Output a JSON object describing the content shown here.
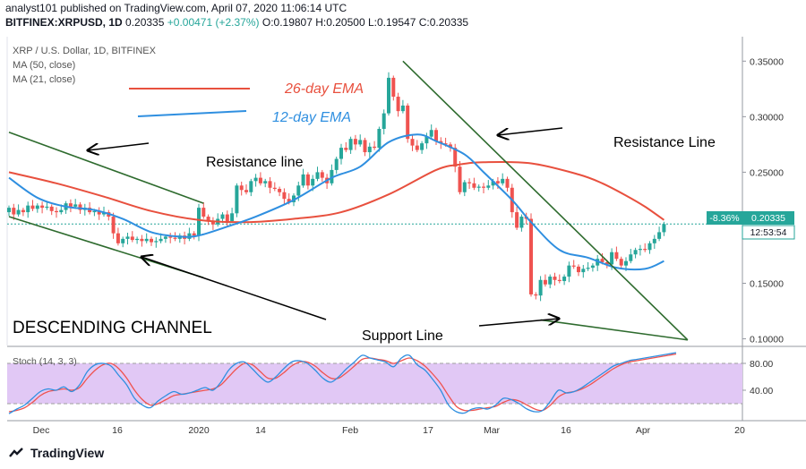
{
  "header": {
    "publish_line": "analyst101 published on TradingView.com, April 07, 2020 11:06:14 UTC",
    "symbol": "BITFINEX:XRPUSD, 1D",
    "price": "0.20335",
    "change": "+0.00471 (+2.37%)",
    "open": "O:0.19807",
    "high": "H:0.20500",
    "low": "L:0.19547",
    "close": "C:0.20335"
  },
  "legend": {
    "title": "XRP / U.S. Dollar, 1D, BITFINEX",
    "ma50": "MA (50, close)",
    "ma21": "MA (21, close)"
  },
  "annotations": {
    "ema26": "26-day EMA",
    "ema12": "12-day EMA",
    "resistance_left": "Resistance line",
    "resistance_right": "Resistance Line",
    "support": "Support Line",
    "channel": "DESCENDING CHANNEL"
  },
  "price_tag": {
    "change_pct": "-8.36%",
    "price": "0.20335",
    "countdown": "12:53:54"
  },
  "stoch": {
    "label": "Stoch (14, 3, 3)",
    "levels": [
      "80.00",
      "40.00"
    ]
  },
  "footer": {
    "brand": "TradingView"
  },
  "colors": {
    "up": "#26a69a",
    "down": "#ef5350",
    "ema26": "#e8503e",
    "ema12": "#2f8fe0",
    "trend": "#2e6b2e",
    "stoch_k": "#2f8fe0",
    "stoch_d": "#ef5350",
    "stoch_band": "#e1c8f5"
  },
  "chart_data": [
    {
      "type": "candlestick",
      "title": "XRP / U.S. Dollar, 1D, BITFINEX",
      "x_ticks": [
        "Dec",
        "16",
        "2020",
        "14",
        "Feb",
        "17",
        "Mar",
        "16",
        "Apr",
        "20"
      ],
      "y_ticks": [
        "0.35000",
        "0.30000",
        "0.25000",
        "0.20000",
        "0.15000",
        "0.10000"
      ],
      "ylim": [
        0.094,
        0.372
      ],
      "y_scale": "linear",
      "last_price": 0.20335,
      "closes": [
        0.218,
        0.212,
        0.216,
        0.214,
        0.22,
        0.217,
        0.22,
        0.218,
        0.219,
        0.215,
        0.214,
        0.216,
        0.222,
        0.219,
        0.221,
        0.216,
        0.218,
        0.214,
        0.215,
        0.212,
        0.214,
        0.21,
        0.195,
        0.186,
        0.19,
        0.192,
        0.189,
        0.19,
        0.188,
        0.19,
        0.187,
        0.188,
        0.19,
        0.192,
        0.191,
        0.19,
        0.193,
        0.19,
        0.195,
        0.193,
        0.218,
        0.21,
        0.206,
        0.203,
        0.208,
        0.212,
        0.206,
        0.213,
        0.238,
        0.234,
        0.232,
        0.242,
        0.245,
        0.24,
        0.242,
        0.236,
        0.235,
        0.232,
        0.226,
        0.223,
        0.229,
        0.238,
        0.248,
        0.238,
        0.244,
        0.25,
        0.245,
        0.24,
        0.252,
        0.262,
        0.272,
        0.27,
        0.28,
        0.275,
        0.279,
        0.268,
        0.273,
        0.272,
        0.289,
        0.303,
        0.335,
        0.318,
        0.305,
        0.31,
        0.28,
        0.274,
        0.27,
        0.276,
        0.282,
        0.288,
        0.278,
        0.276,
        0.275,
        0.272,
        0.255,
        0.232,
        0.241,
        0.24,
        0.236,
        0.237,
        0.236,
        0.238,
        0.242,
        0.24,
        0.244,
        0.236,
        0.214,
        0.2,
        0.21,
        0.208,
        0.14,
        0.139,
        0.153,
        0.149,
        0.156,
        0.153,
        0.152,
        0.156,
        0.166,
        0.165,
        0.16,
        0.163,
        0.164,
        0.166,
        0.172,
        0.169,
        0.167,
        0.178,
        0.172,
        0.166,
        0.17,
        0.176,
        0.18,
        0.181,
        0.18,
        0.186,
        0.19,
        0.196,
        0.20335
      ],
      "series": [
        {
          "name": "MA (50, close)",
          "color": "#e8503e",
          "x": [
            0,
            10,
            20,
            30,
            40,
            50,
            60,
            70,
            80,
            90,
            95,
            100,
            110,
            120,
            125,
            130,
            134,
            138
          ],
          "values": [
            0.25,
            0.24,
            0.228,
            0.215,
            0.207,
            0.205,
            0.208,
            0.214,
            0.23,
            0.252,
            0.257,
            0.259,
            0.258,
            0.248,
            0.24,
            0.229,
            0.219,
            0.207
          ]
        },
        {
          "name": "MA (21, close)",
          "color": "#2f8fe0",
          "x": [
            0,
            6,
            12,
            18,
            24,
            30,
            36,
            40,
            46,
            52,
            60,
            68,
            74,
            80,
            86,
            90,
            96,
            100,
            106,
            110,
            116,
            122,
            128,
            134,
            138
          ],
          "values": [
            0.245,
            0.227,
            0.219,
            0.216,
            0.208,
            0.196,
            0.192,
            0.193,
            0.201,
            0.21,
            0.225,
            0.245,
            0.255,
            0.277,
            0.284,
            0.278,
            0.266,
            0.25,
            0.225,
            0.205,
            0.18,
            0.173,
            0.164,
            0.163,
            0.17
          ]
        }
      ],
      "trend_lines": [
        {
          "name": "channel-upper",
          "x": [
            0,
            41
          ],
          "y": [
            0.286,
            0.222
          ]
        },
        {
          "name": "channel-lower",
          "x": [
            0,
            41
          ],
          "y": [
            0.21,
            0.155
          ]
        },
        {
          "name": "resistance",
          "x": [
            83,
            143
          ],
          "y": [
            0.35,
            0.099
          ]
        },
        {
          "name": "support",
          "x": [
            112,
            143
          ],
          "y": [
            0.117,
            0.099
          ]
        }
      ]
    },
    {
      "type": "line",
      "title": "Stoch (14, 3, 3)",
      "ylim": [
        0,
        100
      ],
      "y_ticks": [
        "80.00",
        "40.00"
      ],
      "bands": [
        20,
        80
      ],
      "series": [
        {
          "name": "%K",
          "color": "#2f8fe0",
          "values": [
            5,
            12,
            18,
            28,
            38,
            42,
            40,
            45,
            38,
            48,
            68,
            78,
            80,
            76,
            62,
            48,
            28,
            18,
            14,
            24,
            32,
            38,
            34,
            36,
            40,
            44,
            40,
            52,
            70,
            80,
            82,
            72,
            60,
            52,
            60,
            72,
            82,
            84,
            80,
            70,
            58,
            52,
            60,
            72,
            82,
            92,
            88,
            85,
            82,
            75,
            88,
            92,
            78,
            70,
            56,
            40,
            18,
            8,
            6,
            12,
            14,
            12,
            18,
            28,
            26,
            20,
            12,
            8,
            10,
            24,
            40,
            36,
            38,
            44,
            52,
            60,
            68,
            76,
            80,
            84,
            86,
            88,
            90,
            92,
            94,
            96
          ]
        },
        {
          "name": "%D",
          "color": "#ef5350",
          "values": [
            8,
            10,
            14,
            22,
            32,
            38,
            40,
            42,
            40,
            44,
            58,
            70,
            78,
            80,
            72,
            58,
            40,
            26,
            18,
            20,
            26,
            32,
            34,
            36,
            38,
            40,
            42,
            48,
            60,
            72,
            80,
            78,
            68,
            58,
            58,
            66,
            76,
            82,
            82,
            76,
            66,
            58,
            58,
            66,
            76,
            86,
            88,
            86,
            84,
            80,
            84,
            88,
            84,
            76,
            64,
            50,
            32,
            16,
            10,
            10,
            12,
            14,
            16,
            22,
            26,
            24,
            18,
            12,
            10,
            18,
            30,
            36,
            38,
            42,
            48,
            56,
            64,
            72,
            78,
            82,
            84,
            86,
            88,
            90,
            92,
            94
          ]
        }
      ]
    }
  ]
}
